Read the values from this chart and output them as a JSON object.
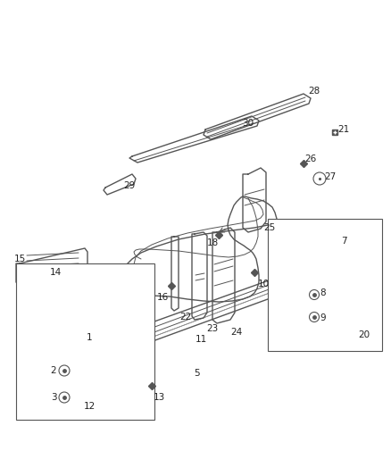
{
  "bg_color": "#ffffff",
  "line_color": "#555555",
  "dark_color": "#333333",
  "label_color": "#222222",
  "fig_width": 4.38,
  "fig_height": 5.33
}
